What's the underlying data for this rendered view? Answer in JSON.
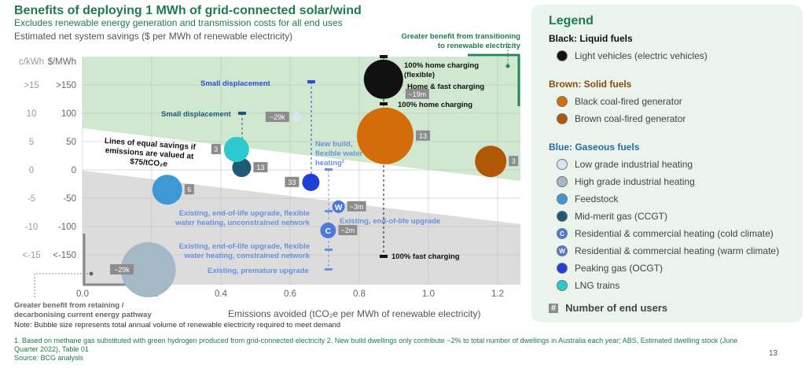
{
  "header": {
    "title": "Benefits of deploying 1 MWh of grid-connected solar/wind",
    "subtitle": "Excludes renewable energy generation and transmission costs for all end uses",
    "ylabel": "Estimated net system savings ($ per MWh of renewable electricity)"
  },
  "chart_data": {
    "type": "scatter",
    "xlabel": "Emissions avoided (tCO₂e per MWh of renewable electricity)",
    "ylabel_units": [
      "c/kWh",
      "$/MWh"
    ],
    "xlim": [
      0,
      1.26
    ],
    "ylim": [
      -200,
      200
    ],
    "xticks": [
      "0.0",
      "0.2",
      "0.4",
      "0.6",
      "0.8",
      "1.0",
      "1.2"
    ],
    "yticks": [
      {
        "v": 150,
        "c": ">15",
        "d": ">150"
      },
      {
        "v": 100,
        "c": "10",
        "d": "100"
      },
      {
        "v": 50,
        "c": "5",
        "d": "50"
      },
      {
        "v": 0,
        "c": "0",
        "d": "0"
      },
      {
        "v": -50,
        "c": "-5",
        "d": "-50"
      },
      {
        "v": -100,
        "c": "-10",
        "d": "-100"
      },
      {
        "v": -150,
        "c": "<-15",
        "d": "<-150"
      }
    ],
    "grid": true,
    "bubbles": [
      {
        "name": "Light vehicles (electric vehicles)",
        "x": 0.87,
        "y": 160,
        "size": 25,
        "color": "#111111",
        "label": "~19m"
      },
      {
        "name": "Black coal-fired generator",
        "x": 0.875,
        "y": 60,
        "size": 36,
        "color": "#d26d0a",
        "label": "13"
      },
      {
        "name": "Brown coal-fired generator",
        "x": 1.18,
        "y": 15,
        "size": 20,
        "color": "#b05708",
        "label": "3"
      },
      {
        "name": "Low grade industrial heating",
        "x": 0.62,
        "y": 93,
        "size": 6,
        "color": "#d7e6f2",
        "label": "~29k"
      },
      {
        "name": "High grade industrial heating",
        "x": 0.19,
        "y": -177,
        "size": 35,
        "color": "#a4b8c6",
        "label": "~29k"
      },
      {
        "name": "Feedstock",
        "x": 0.245,
        "y": -35,
        "size": 19,
        "color": "#3d98d3",
        "label": "6"
      },
      {
        "name": "Mid-merit gas (CCGT)",
        "x": 0.46,
        "y": 4,
        "size": 12,
        "color": "#1e5a78",
        "label": "13"
      },
      {
        "name": "LNG trains",
        "x": 0.445,
        "y": 36,
        "size": 16,
        "color": "#2cc9cf",
        "label": "3"
      },
      {
        "name": "Peaking gas (OCGT)",
        "x": 0.66,
        "y": -22,
        "size": 11,
        "color": "#1f3fd6",
        "label": "33"
      },
      {
        "name": "Residential & commercial heating (warm climate)",
        "x": 0.74,
        "y": -65,
        "size": 8,
        "color": "#4f79d8",
        "letter": "W",
        "label": "~3m"
      },
      {
        "name": "Residential & commercial heating (cold climate)",
        "x": 0.71,
        "y": -107,
        "size": 10,
        "color": "#4f79d8",
        "letter": "C",
        "label": "~2m"
      }
    ],
    "annotations": [
      {
        "text": "100% home charging (flexible)",
        "color": "#111"
      },
      {
        "text": "Home & fast charging",
        "color": "#111"
      },
      {
        "text": "100% home charging",
        "color": "#111"
      },
      {
        "text": "100% fast charging",
        "color": "#111"
      },
      {
        "text": "Small displacement",
        "color": "#2a4fd0"
      },
      {
        "text": "Small displacement",
        "color": "#1e5a78"
      },
      {
        "text": "New build, flexible water heating²",
        "color": "#6a8fdc"
      },
      {
        "text": "Existing, end-of-life upgrade, flexible water heating, unconstrained network",
        "color": "#6a8fdc"
      },
      {
        "text": "Existing, end-of-life upgrade",
        "color": "#6a8fdc"
      },
      {
        "text": "Existing, end-of-life upgrade, flexible water heating, constrained network",
        "color": "#6a8fdc"
      },
      {
        "text": "Existing, premature upgrade",
        "color": "#6a8fdc"
      },
      {
        "text": "Lines of equal savings if emissions are valued at $75/tCO₂e",
        "color": "#111"
      },
      {
        "text": "Greater benefit from transitioning to renewable electricity",
        "color": "#1f7a4f"
      },
      {
        "text": "Greater benefit from retaining / decarbonising current energy pathway",
        "color": "#666"
      }
    ]
  },
  "legend": {
    "title": "Legend",
    "groups": [
      {
        "title": "Black: Liquid fuels",
        "color": "#111",
        "items": [
          0
        ]
      },
      {
        "title": "Brown: Solid fuels",
        "color": "#8a4a0e",
        "items": [
          1,
          2
        ]
      },
      {
        "title": "Blue: Gaseous fuels",
        "color": "#2b6a9a",
        "items": [
          3,
          4,
          5,
          6,
          10,
          9,
          8,
          7
        ]
      }
    ],
    "count_label": "Number of end users",
    "count_symbol": "#"
  },
  "footer": {
    "note": "Note: Bubble size represents total annual volume of renewable electricity required to meet demand",
    "fn1": "1. Based on methane gas substituted with green hydrogen produced from grid-connected electricity 2. New build dwellings only contribute ~2% to total number of dwellings in Australia each year; ABS, Estimated dwelling stock (June",
    "fn2": "Quarter 2022), Table 01",
    "source": "Source: BCG analysis",
    "page": "13"
  }
}
